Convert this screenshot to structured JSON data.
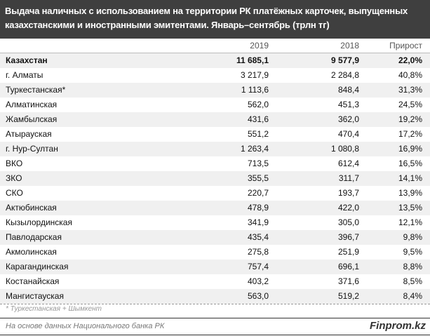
{
  "title": "Выдача наличных с использованием на территории РК платёжных карточек, выпущенных казахстанскими и иностранными эмитентами. Январь–сентябрь  (трлн тг)",
  "columns": [
    "",
    "2019",
    "2018",
    "Прирост"
  ],
  "rows": [
    {
      "name": "Казахстан",
      "v2019": "11 685,1",
      "v2018": "9 577,9",
      "growth": "22,0%"
    },
    {
      "name": "г. Алматы",
      "v2019": "3 217,9",
      "v2018": "2 284,8",
      "growth": "40,8%"
    },
    {
      "name": "Туркестанская*",
      "v2019": "1 113,6",
      "v2018": "848,4",
      "growth": "31,3%"
    },
    {
      "name": "Алматинская",
      "v2019": "562,0",
      "v2018": "451,3",
      "growth": "24,5%"
    },
    {
      "name": "Жамбылская",
      "v2019": "431,6",
      "v2018": "362,0",
      "growth": "19,2%"
    },
    {
      "name": "Атырауская",
      "v2019": "551,2",
      "v2018": "470,4",
      "growth": "17,2%"
    },
    {
      "name": "г. Нур-Султан",
      "v2019": "1 263,4",
      "v2018": "1 080,8",
      "growth": "16,9%"
    },
    {
      "name": "ВКО",
      "v2019": "713,5",
      "v2018": "612,4",
      "growth": "16,5%"
    },
    {
      "name": "ЗКО",
      "v2019": "355,5",
      "v2018": "311,7",
      "growth": "14,1%"
    },
    {
      "name": "СКО",
      "v2019": "220,7",
      "v2018": "193,7",
      "growth": "13,9%"
    },
    {
      "name": "Актюбинская",
      "v2019": "478,9",
      "v2018": "422,0",
      "growth": "13,5%"
    },
    {
      "name": "Кызылординская",
      "v2019": "341,9",
      "v2018": "305,0",
      "growth": "12,1%"
    },
    {
      "name": "Павлодарская",
      "v2019": "435,4",
      "v2018": "396,7",
      "growth": "9,8%"
    },
    {
      "name": "Акмолинская",
      "v2019": "275,8",
      "v2018": "251,9",
      "growth": "9,5%"
    },
    {
      "name": "Карагандинская",
      "v2019": "757,4",
      "v2018": "696,1",
      "growth": "8,8%"
    },
    {
      "name": "Костанайская",
      "v2019": "403,2",
      "v2018": "371,6",
      "growth": "8,5%"
    },
    {
      "name": "Мангистауская",
      "v2019": "563,0",
      "v2018": "519,2",
      "growth": "8,4%"
    }
  ],
  "footnote": "* Туркестанская + Шымкент",
  "source": "На основе данных Национального банка РК",
  "logo": "Finprom.kz"
}
